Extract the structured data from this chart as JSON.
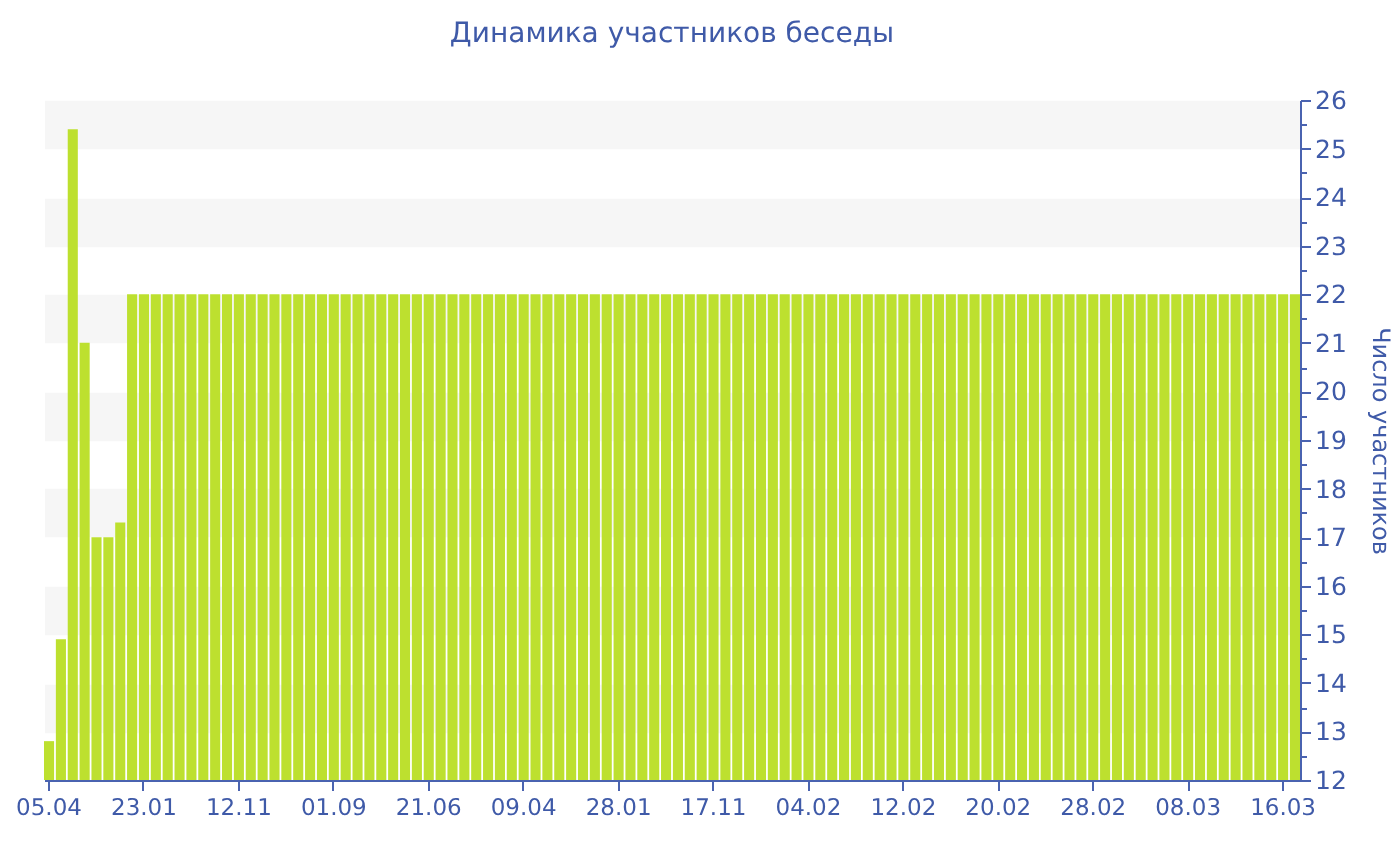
{
  "chart_data": {
    "type": "bar",
    "title": "Динамика участников беседы",
    "ylabel": "Число участников",
    "categories": [
      "05.04",
      null,
      null,
      null,
      null,
      null,
      null,
      null,
      "23.01",
      null,
      null,
      null,
      null,
      null,
      null,
      null,
      "12.11",
      null,
      null,
      null,
      null,
      null,
      null,
      null,
      "01.09",
      null,
      null,
      null,
      null,
      null,
      null,
      null,
      "21.06",
      null,
      null,
      null,
      null,
      null,
      null,
      null,
      "09.04",
      null,
      null,
      null,
      null,
      null,
      null,
      null,
      "28.01",
      null,
      null,
      null,
      null,
      null,
      null,
      null,
      "17.11",
      null,
      null,
      null,
      null,
      null,
      null,
      null,
      "04.02",
      null,
      null,
      null,
      null,
      null,
      null,
      null,
      "12.02",
      null,
      null,
      null,
      null,
      null,
      null,
      null,
      "20.02",
      null,
      null,
      null,
      null,
      null,
      null,
      null,
      "28.02",
      null,
      null,
      null,
      null,
      null,
      null,
      null,
      "08.03",
      null,
      null,
      null,
      null,
      null,
      null,
      null,
      "16.03",
      null
    ],
    "values": [
      12.8,
      14.9,
      25.4,
      21,
      17,
      17,
      17.3,
      22,
      22,
      22,
      22,
      22,
      22,
      22,
      22,
      22,
      22,
      22,
      22,
      22,
      22,
      22,
      22,
      22,
      22,
      22,
      22,
      22,
      22,
      22,
      22,
      22,
      22,
      22,
      22,
      22,
      22,
      22,
      22,
      22,
      22,
      22,
      22,
      22,
      22,
      22,
      22,
      22,
      22,
      22,
      22,
      22,
      22,
      22,
      22,
      22,
      22,
      22,
      22,
      22,
      22,
      22,
      22,
      22,
      22,
      22,
      22,
      22,
      22,
      22,
      22,
      22,
      22,
      22,
      22,
      22,
      22,
      22,
      22,
      22,
      22,
      22,
      22,
      22,
      22,
      22,
      22,
      22,
      22,
      22,
      22,
      22,
      22,
      22,
      22,
      22,
      22,
      22,
      22,
      22,
      22,
      22,
      22,
      22,
      22,
      22
    ],
    "color": "#bde02f",
    "ylim": [
      12,
      26
    ],
    "yticks": [
      12,
      {
        "value": 12.5,
        "label": null
      },
      13,
      {
        "value": 13.5,
        "label": null
      },
      14,
      {
        "value": 14.5,
        "label": null
      },
      15,
      {
        "value": 15.5,
        "label": null
      },
      16,
      {
        "value": 16.5,
        "label": null
      },
      17,
      {
        "value": 17.5,
        "label": null
      },
      18,
      {
        "value": 18.5,
        "label": null
      },
      19,
      {
        "value": 19.5,
        "label": null
      },
      20,
      {
        "value": 20.5,
        "label": null
      },
      21,
      {
        "value": 21.5,
        "label": null
      },
      22,
      {
        "value": 22.5,
        "label": null
      },
      23,
      {
        "value": 23.5,
        "label": null
      },
      24,
      {
        "value": 24.5,
        "label": null
      },
      25,
      {
        "value": 25.5,
        "label": null
      },
      26
    ],
    "grid": "y"
  }
}
